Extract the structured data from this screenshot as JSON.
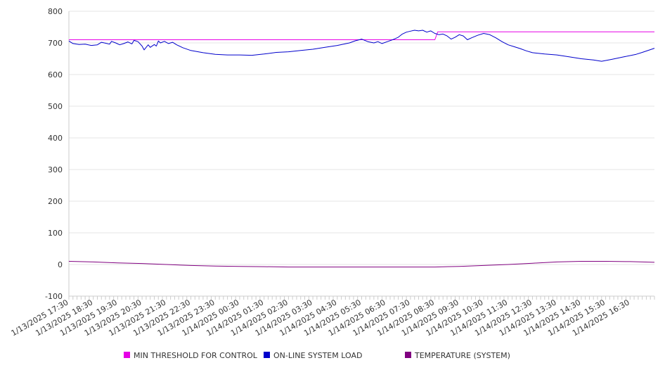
{
  "chart_data": {
    "type": "line",
    "title": "",
    "xlabel": "",
    "ylabel": "",
    "ylim": [
      -100,
      800
    ],
    "y_ticks": [
      -100,
      0,
      100,
      200,
      300,
      400,
      500,
      600,
      700,
      800
    ],
    "y_tick_labels": [
      "-100",
      "0",
      "100",
      "200",
      "300",
      "400",
      "500",
      "600",
      "700",
      "800"
    ],
    "grid": true,
    "legend_position": "bottom",
    "x_start": "2025-01-13T17:30",
    "x_end": "2025-01-14T17:30",
    "x_tick_labels": [
      "1/13/2025 17:30",
      "1/13/2025 18:30",
      "1/13/2025 19:30",
      "1/13/2025 20:30",
      "1/13/2025 21:30",
      "1/13/2025 22:30",
      "1/13/2025 23:30",
      "1/14/2025 00:30",
      "1/14/2025 01:30",
      "1/14/2025 02:30",
      "1/14/2025 03:30",
      "1/14/2025 04:30",
      "1/14/2025 05:30",
      "1/14/2025 06:30",
      "1/14/2025 07:30",
      "1/14/2025 08:30",
      "1/14/2025 09:30",
      "1/14/2025 10:30",
      "1/14/2025 11:30",
      "1/14/2025 12:30",
      "1/14/2025 13:30",
      "1/14/2025 14:30",
      "1/14/2025 15:30",
      "1/14/2025 16:30"
    ],
    "x_tick_times": [
      "2025-01-13T17:30",
      "2025-01-13T18:30",
      "2025-01-13T19:30",
      "2025-01-13T20:30",
      "2025-01-13T21:30",
      "2025-01-13T22:30",
      "2025-01-13T23:30",
      "2025-01-14T00:30",
      "2025-01-14T01:30",
      "2025-01-14T02:30",
      "2025-01-14T03:30",
      "2025-01-14T04:30",
      "2025-01-14T05:30",
      "2025-01-14T06:30",
      "2025-01-14T07:30",
      "2025-01-14T08:30",
      "2025-01-14T09:30",
      "2025-01-14T10:30",
      "2025-01-14T11:30",
      "2025-01-14T12:30",
      "2025-01-14T13:30",
      "2025-01-14T14:30",
      "2025-01-14T15:30",
      "2025-01-14T16:30"
    ],
    "series": [
      {
        "name": "MIN THRESHOLD FOR CONTROL",
        "color": "#e600e6",
        "points": [
          [
            "2025-01-13T17:30",
            710
          ],
          [
            "2025-01-14T08:30",
            710
          ],
          [
            "2025-01-14T08:37",
            735
          ],
          [
            "2025-01-14T17:30",
            735
          ]
        ]
      },
      {
        "name": "ON-LINE SYSTEM LOAD",
        "color": "#0000cc",
        "points": [
          [
            "2025-01-13T17:30",
            706
          ],
          [
            "2025-01-13T17:40",
            698
          ],
          [
            "2025-01-13T17:55",
            695
          ],
          [
            "2025-01-13T18:10",
            696
          ],
          [
            "2025-01-13T18:25",
            692
          ],
          [
            "2025-01-13T18:40",
            694
          ],
          [
            "2025-01-13T18:50",
            702
          ],
          [
            "2025-01-13T19:00",
            699
          ],
          [
            "2025-01-13T19:10",
            696
          ],
          [
            "2025-01-13T19:15",
            705
          ],
          [
            "2025-01-13T19:25",
            700
          ],
          [
            "2025-01-13T19:35",
            694
          ],
          [
            "2025-01-13T19:45",
            698
          ],
          [
            "2025-01-13T19:55",
            703
          ],
          [
            "2025-01-13T20:05",
            697
          ],
          [
            "2025-01-13T20:10",
            708
          ],
          [
            "2025-01-13T20:20",
            704
          ],
          [
            "2025-01-13T20:30",
            690
          ],
          [
            "2025-01-13T20:35",
            678
          ],
          [
            "2025-01-13T20:45",
            694
          ],
          [
            "2025-01-13T20:50",
            686
          ],
          [
            "2025-01-13T21:00",
            695
          ],
          [
            "2025-01-13T21:05",
            690
          ],
          [
            "2025-01-13T21:10",
            706
          ],
          [
            "2025-01-13T21:15",
            700
          ],
          [
            "2025-01-13T21:25",
            705
          ],
          [
            "2025-01-13T21:35",
            698
          ],
          [
            "2025-01-13T21:45",
            702
          ],
          [
            "2025-01-13T21:55",
            694
          ],
          [
            "2025-01-13T22:10",
            685
          ],
          [
            "2025-01-13T22:30",
            676
          ],
          [
            "2025-01-13T23:00",
            669
          ],
          [
            "2025-01-13T23:30",
            664
          ],
          [
            "2025-01-14T00:00",
            662
          ],
          [
            "2025-01-14T00:30",
            662
          ],
          [
            "2025-01-14T01:00",
            661
          ],
          [
            "2025-01-14T01:30",
            665
          ],
          [
            "2025-01-14T02:00",
            670
          ],
          [
            "2025-01-14T02:30",
            672
          ],
          [
            "2025-01-14T03:00",
            676
          ],
          [
            "2025-01-14T03:30",
            680
          ],
          [
            "2025-01-14T04:00",
            686
          ],
          [
            "2025-01-14T04:30",
            692
          ],
          [
            "2025-01-14T05:00",
            700
          ],
          [
            "2025-01-14T05:15",
            707
          ],
          [
            "2025-01-14T05:30",
            712
          ],
          [
            "2025-01-14T05:45",
            704
          ],
          [
            "2025-01-14T06:00",
            700
          ],
          [
            "2025-01-14T06:10",
            704
          ],
          [
            "2025-01-14T06:20",
            698
          ],
          [
            "2025-01-14T06:35",
            705
          ],
          [
            "2025-01-14T06:50",
            712
          ],
          [
            "2025-01-14T07:00",
            718
          ],
          [
            "2025-01-14T07:10",
            728
          ],
          [
            "2025-01-14T07:20",
            734
          ],
          [
            "2025-01-14T07:30",
            737
          ],
          [
            "2025-01-14T07:40",
            740
          ],
          [
            "2025-01-14T07:50",
            738
          ],
          [
            "2025-01-14T08:00",
            740
          ],
          [
            "2025-01-14T08:10",
            734
          ],
          [
            "2025-01-14T08:20",
            738
          ],
          [
            "2025-01-14T08:30",
            730
          ],
          [
            "2025-01-14T08:40",
            726
          ],
          [
            "2025-01-14T08:50",
            728
          ],
          [
            "2025-01-14T09:00",
            722
          ],
          [
            "2025-01-14T09:10",
            712
          ],
          [
            "2025-01-14T09:20",
            718
          ],
          [
            "2025-01-14T09:30",
            726
          ],
          [
            "2025-01-14T09:40",
            722
          ],
          [
            "2025-01-14T09:50",
            710
          ],
          [
            "2025-01-14T10:00",
            716
          ],
          [
            "2025-01-14T10:15",
            724
          ],
          [
            "2025-01-14T10:30",
            730
          ],
          [
            "2025-01-14T10:45",
            726
          ],
          [
            "2025-01-14T11:00",
            716
          ],
          [
            "2025-01-14T11:15",
            704
          ],
          [
            "2025-01-14T11:30",
            694
          ],
          [
            "2025-01-14T11:45",
            688
          ],
          [
            "2025-01-14T12:00",
            682
          ],
          [
            "2025-01-14T12:15",
            675
          ],
          [
            "2025-01-14T12:30",
            669
          ],
          [
            "2025-01-14T13:00",
            665
          ],
          [
            "2025-01-14T13:30",
            662
          ],
          [
            "2025-01-14T14:00",
            656
          ],
          [
            "2025-01-14T14:30",
            650
          ],
          [
            "2025-01-14T15:00",
            646
          ],
          [
            "2025-01-14T15:20",
            642
          ],
          [
            "2025-01-14T15:45",
            648
          ],
          [
            "2025-01-14T16:15",
            656
          ],
          [
            "2025-01-14T16:45",
            664
          ],
          [
            "2025-01-14T17:00",
            670
          ],
          [
            "2025-01-14T17:30",
            683
          ]
        ]
      },
      {
        "name": "TEMPERATURE (SYSTEM)",
        "color": "#800080",
        "points": [
          [
            "2025-01-13T17:30",
            10
          ],
          [
            "2025-01-13T18:30",
            8
          ],
          [
            "2025-01-13T19:30",
            5
          ],
          [
            "2025-01-13T20:30",
            3
          ],
          [
            "2025-01-13T21:30",
            0
          ],
          [
            "2025-01-13T22:30",
            -3
          ],
          [
            "2025-01-13T23:30",
            -5
          ],
          [
            "2025-01-14T00:30",
            -6
          ],
          [
            "2025-01-14T01:30",
            -7
          ],
          [
            "2025-01-14T02:30",
            -8
          ],
          [
            "2025-01-14T03:30",
            -8
          ],
          [
            "2025-01-14T04:30",
            -8
          ],
          [
            "2025-01-14T05:30",
            -8
          ],
          [
            "2025-01-14T06:30",
            -8
          ],
          [
            "2025-01-14T07:30",
            -8
          ],
          [
            "2025-01-14T08:30",
            -8
          ],
          [
            "2025-01-14T09:30",
            -6
          ],
          [
            "2025-01-14T10:30",
            -3
          ],
          [
            "2025-01-14T11:30",
            0
          ],
          [
            "2025-01-14T12:30",
            4
          ],
          [
            "2025-01-14T13:30",
            8
          ],
          [
            "2025-01-14T14:30",
            10
          ],
          [
            "2025-01-14T15:30",
            10
          ],
          [
            "2025-01-14T16:30",
            9
          ],
          [
            "2025-01-14T17:30",
            7
          ]
        ]
      }
    ]
  }
}
